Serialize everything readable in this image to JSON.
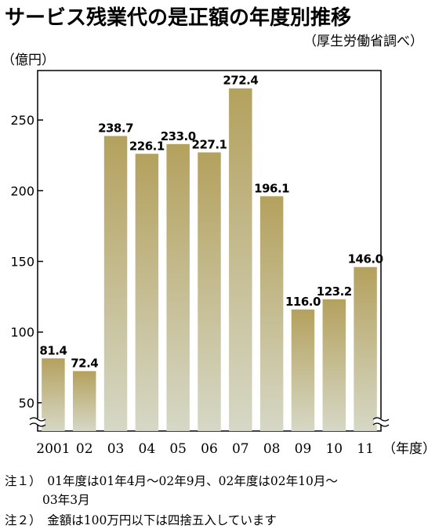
{
  "title": "サービス残業代の是正額の年度別推移",
  "source": "（厚生労働省調べ）",
  "notes": [
    "注１）　01年度は01年4月～02年9月、02年度は02年10月～",
    "03年3月",
    "注２）　金額は100万円以下は四捨五入しています"
  ],
  "chart_data": {
    "type": "bar",
    "title": "サービス残業代の是正額の年度別推移",
    "ylabel": "（億円）",
    "xlabel": "（年度）",
    "categories": [
      "2001",
      "02",
      "03",
      "04",
      "05",
      "06",
      "07",
      "08",
      "09",
      "10",
      "11"
    ],
    "values": [
      81.4,
      72.4,
      238.7,
      226.1,
      233.0,
      227.1,
      272.4,
      196.1,
      116.0,
      123.2,
      146.0
    ],
    "value_labels": [
      "81.4",
      "72.4",
      "238.7",
      "226.1",
      "233.0",
      "227.1",
      "272.4",
      "196.1",
      "116.0",
      "123.2",
      "146.0"
    ],
    "yticks": [
      50,
      100,
      150,
      200,
      250
    ],
    "ylim": [
      30,
      285
    ],
    "axis_break": true,
    "grid": false,
    "bar_color_top": "#b4a15e",
    "bar_color_bottom": "#d6d8c6"
  }
}
